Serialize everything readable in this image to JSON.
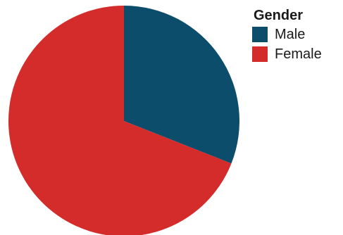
{
  "chart_data": {
    "type": "pie",
    "legend_title": "Gender",
    "legend_placement": "top-right",
    "slices": [
      {
        "label": "Male",
        "value": 31,
        "color": "#0b4d6b"
      },
      {
        "label": "Female",
        "value": 69,
        "color": "#d42b2b"
      }
    ]
  }
}
